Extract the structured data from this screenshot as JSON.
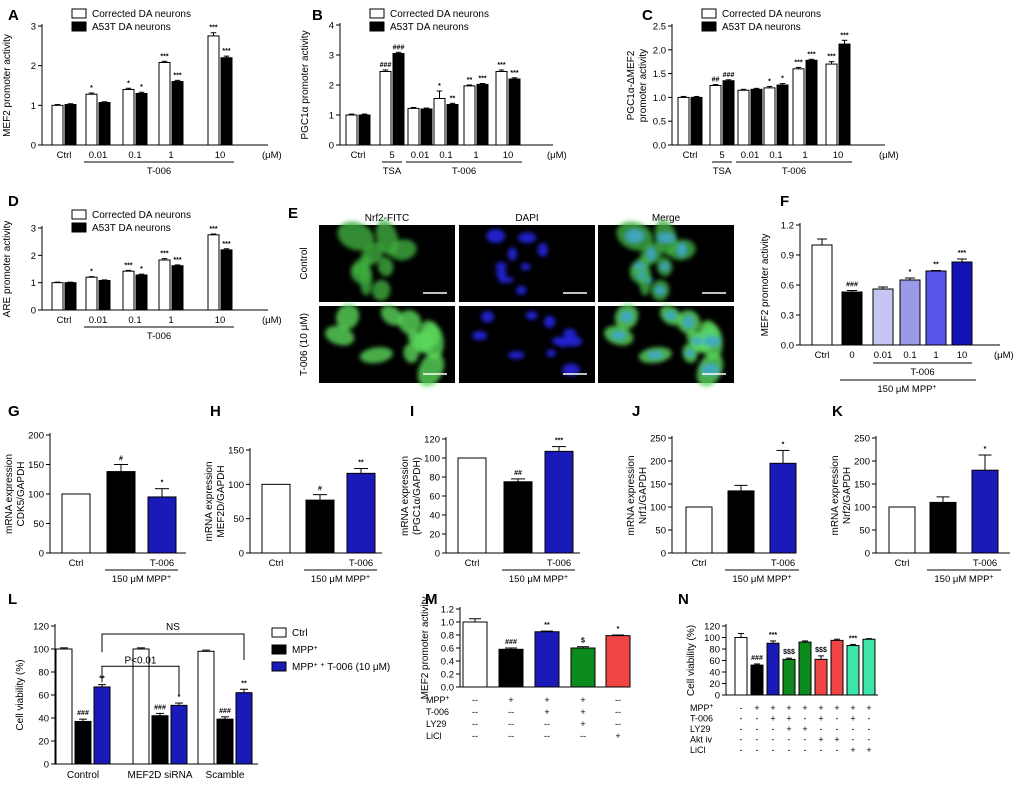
{
  "chart_data": [
    {
      "letter": "A",
      "type": "bar",
      "ylabel": "MEF2 promoter activity",
      "ylim": [
        0,
        3
      ],
      "yticks": [
        "0",
        "1",
        "2",
        "3"
      ],
      "legend": [
        "Corrected DA neurons",
        "A53T DA neurons"
      ],
      "unit": "(μM)",
      "group_label": "T-006",
      "groups": [
        {
          "label": "Ctrl",
          "values": [
            1.0,
            1.02
          ],
          "err": [
            0.02,
            0.02
          ],
          "sig": [
            "",
            ""
          ]
        },
        {
          "label": "0.01",
          "values": [
            1.28,
            1.07
          ],
          "err": [
            0.03,
            0.02
          ],
          "sig": [
            "*",
            ""
          ]
        },
        {
          "label": "0.1",
          "values": [
            1.4,
            1.3
          ],
          "err": [
            0.03,
            0.03
          ],
          "sig": [
            "*",
            "*"
          ]
        },
        {
          "label": "1",
          "values": [
            2.08,
            1.6
          ],
          "err": [
            0.03,
            0.03
          ],
          "sig": [
            "***",
            "***"
          ]
        },
        {
          "label": "10",
          "values": [
            2.75,
            2.2
          ],
          "err": [
            0.08,
            0.04
          ],
          "sig": [
            "***",
            "***"
          ]
        }
      ]
    },
    {
      "letter": "B",
      "type": "bar",
      "ylabel": "PGC1α promoter activity",
      "ylim": [
        0,
        4
      ],
      "yticks": [
        "0",
        "1",
        "2",
        "3",
        "4"
      ],
      "legend": [
        "Corrected DA neurons",
        "A53T DA neurons"
      ],
      "unit": "(μM)",
      "group_label": "T-006",
      "tsa_label": "TSA",
      "groups": [
        {
          "label": "Ctrl",
          "values": [
            1.0,
            1.0
          ],
          "err": [
            0.03,
            0.03
          ],
          "sig": [
            "",
            ""
          ]
        },
        {
          "label": "5",
          "values": [
            2.45,
            3.05
          ],
          "err": [
            0.05,
            0.04
          ],
          "sig": [
            "###",
            "###"
          ]
        },
        {
          "label": "0.01",
          "values": [
            1.22,
            1.2
          ],
          "err": [
            0.03,
            0.03
          ],
          "sig": [
            "",
            ""
          ]
        },
        {
          "label": "0.1",
          "values": [
            1.55,
            1.35
          ],
          "err": [
            0.25,
            0.04
          ],
          "sig": [
            "*",
            "**"
          ]
        },
        {
          "label": "1",
          "values": [
            1.97,
            2.02
          ],
          "err": [
            0.03,
            0.03
          ],
          "sig": [
            "**",
            "***"
          ]
        },
        {
          "label": "10",
          "values": [
            2.45,
            2.2
          ],
          "err": [
            0.05,
            0.04
          ],
          "sig": [
            "***",
            "***"
          ]
        }
      ]
    },
    {
      "letter": "C",
      "type": "bar",
      "ylabel": "PGC1α-ΔMEF2 promoter activity",
      "ylim": [
        0,
        2.5
      ],
      "yticks": [
        "0.0",
        "0.5",
        "1.0",
        "1.5",
        "2.0",
        "2.5"
      ],
      "legend": [
        "Corrected DA neurons",
        "A53T DA neurons"
      ],
      "unit": "(μM)",
      "group_label": "T-006",
      "tsa_label": "TSA",
      "groups": [
        {
          "label": "Ctrl",
          "values": [
            1.0,
            1.0
          ],
          "err": [
            0.02,
            0.02
          ],
          "sig": [
            "",
            ""
          ]
        },
        {
          "label": "5",
          "values": [
            1.25,
            1.35
          ],
          "err": [
            0.02,
            0.02
          ],
          "sig": [
            "##",
            "###"
          ]
        },
        {
          "label": "0.01",
          "values": [
            1.15,
            1.17
          ],
          "err": [
            0.02,
            0.02
          ],
          "sig": [
            "",
            ""
          ]
        },
        {
          "label": "0.1",
          "values": [
            1.2,
            1.26
          ],
          "err": [
            0.03,
            0.03
          ],
          "sig": [
            "*",
            "*"
          ]
        },
        {
          "label": "1",
          "values": [
            1.6,
            1.78
          ],
          "err": [
            0.03,
            0.02
          ],
          "sig": [
            "***",
            "***"
          ]
        },
        {
          "label": "10",
          "values": [
            1.7,
            2.12
          ],
          "err": [
            0.05,
            0.08
          ],
          "sig": [
            "***",
            "***"
          ]
        }
      ]
    },
    {
      "letter": "D",
      "type": "bar",
      "ylabel": "ARE promoter activity",
      "ylim": [
        0,
        3
      ],
      "yticks": [
        "0",
        "1",
        "2",
        "3"
      ],
      "legend": [
        "Corrected DA neurons",
        "A53T DA neurons"
      ],
      "unit": "(μM)",
      "group_label": "T-006",
      "groups": [
        {
          "label": "Ctrl",
          "values": [
            1.0,
            1.0
          ],
          "err": [
            0.02,
            0.02
          ],
          "sig": [
            "",
            ""
          ]
        },
        {
          "label": "0.01",
          "values": [
            1.2,
            1.08
          ],
          "err": [
            0.02,
            0.02
          ],
          "sig": [
            "*",
            ""
          ]
        },
        {
          "label": "0.1",
          "values": [
            1.42,
            1.28
          ],
          "err": [
            0.03,
            0.03
          ],
          "sig": [
            "***",
            "*"
          ]
        },
        {
          "label": "1",
          "values": [
            1.83,
            1.62
          ],
          "err": [
            0.05,
            0.03
          ],
          "sig": [
            "***",
            "***"
          ]
        },
        {
          "label": "10",
          "values": [
            2.75,
            2.2
          ],
          "err": [
            0.03,
            0.04
          ],
          "sig": [
            "***",
            "***"
          ]
        }
      ]
    },
    {
      "letter": "F",
      "type": "bar",
      "ylabel": "MEF2 promoter activity",
      "ylim": [
        0,
        1.2
      ],
      "yticks": [
        "0.0",
        "0.3",
        "0.6",
        "0.9",
        "1.2"
      ],
      "categories": [
        "Ctrl",
        "0",
        "0.01",
        "0.1",
        "1",
        "10"
      ],
      "values": [
        1.0,
        0.53,
        0.56,
        0.65,
        0.74,
        0.83
      ],
      "err": [
        0.06,
        0.015,
        0.02,
        0.02,
        0.005,
        0.03
      ],
      "sig": [
        "",
        "###",
        "",
        "*",
        "**",
        "***"
      ],
      "colors": [
        "#ffffff",
        "#000000",
        "#c6c6f5",
        "#9a9ae8",
        "#5555e8",
        "#1313b5"
      ],
      "unit": "(μM)",
      "group_label": "T-006",
      "mpp_label": "150 μM MPP+"
    },
    {
      "letter": "G",
      "type": "bar",
      "ylabel": "mRNA expression CDK5/GAPDH",
      "ylim": [
        0,
        200
      ],
      "yticks": [
        "0",
        "50",
        "100",
        "150",
        "200"
      ],
      "categories": [
        "Ctrl",
        "",
        "T-006"
      ],
      "values": [
        100,
        138,
        95
      ],
      "err": [
        0,
        12,
        14
      ],
      "sig": [
        "",
        "#",
        "*"
      ],
      "mpp_label": "150 μM MPP+"
    },
    {
      "letter": "H",
      "type": "bar",
      "ylabel": "mRNA expression MEF2D/GAPDH",
      "ylim": [
        0,
        150
      ],
      "yticks": [
        "0",
        "50",
        "100",
        "150"
      ],
      "categories": [
        "Ctrl",
        "",
        "T-006"
      ],
      "values": [
        100,
        77,
        116
      ],
      "err": [
        0,
        8,
        7
      ],
      "sig": [
        "",
        "#",
        "**"
      ],
      "mpp_label": "150 μM MPP+"
    },
    {
      "letter": "I",
      "type": "bar",
      "ylabel": "mRNA expression (PGC1α/GAPDH)",
      "ylim": [
        0,
        120
      ],
      "yticks": [
        "0",
        "20",
        "40",
        "60",
        "80",
        "100",
        "120"
      ],
      "categories": [
        "Ctrl",
        "",
        "T-006"
      ],
      "values": [
        100,
        75,
        107
      ],
      "err": [
        0,
        3,
        5
      ],
      "sig": [
        "",
        "##",
        "***"
      ],
      "mpp_label": "150 μM MPP+"
    },
    {
      "letter": "J",
      "type": "bar",
      "ylabel": "mRNA expression Nrf1/GAPDH",
      "ylim": [
        0,
        250
      ],
      "yticks": [
        "0",
        "50",
        "100",
        "150",
        "200",
        "250"
      ],
      "categories": [
        "Ctrl",
        "",
        "T-006"
      ],
      "values": [
        100,
        135,
        195
      ],
      "err": [
        0,
        12,
        28
      ],
      "sig": [
        "",
        "",
        "*"
      ],
      "mpp_label": "150 μM MPP+"
    },
    {
      "letter": "K",
      "type": "bar",
      "ylabel": "mRNA expression Nrf2/GAPDH",
      "ylim": [
        0,
        250
      ],
      "yticks": [
        "0",
        "50",
        "100",
        "150",
        "200",
        "250"
      ],
      "categories": [
        "Ctrl",
        "",
        "T-006"
      ],
      "values": [
        100,
        110,
        180
      ],
      "err": [
        0,
        12,
        33
      ],
      "sig": [
        "",
        "",
        "*"
      ],
      "mpp_label": "150 μM MPP+"
    },
    {
      "letter": "L",
      "type": "bar",
      "ylabel": "Cell viability (%)",
      "ylim": [
        0,
        120
      ],
      "yticks": [
        "0",
        "20",
        "40",
        "60",
        "80",
        "100",
        "120"
      ],
      "legend": [
        "Ctrl",
        "MPP+",
        "MPP+ + T-006 (10 μM)"
      ],
      "groups": [
        {
          "label": "Control",
          "values": [
            100,
            37,
            67
          ],
          "err": [
            1,
            2,
            2
          ],
          "sig": [
            "",
            "###",
            "**"
          ]
        },
        {
          "label": "MEF2D siRNA",
          "values": [
            100,
            42,
            51
          ],
          "err": [
            1,
            2,
            2
          ],
          "sig": [
            "",
            "###",
            "*"
          ]
        },
        {
          "label": "Scamble",
          "values": [
            98,
            39,
            62
          ],
          "err": [
            1,
            2,
            3
          ],
          "sig": [
            "",
            "###",
            "**"
          ]
        }
      ],
      "brackets": [
        "P<0.01",
        "NS"
      ]
    },
    {
      "letter": "M",
      "type": "bar",
      "ylabel": "MEF2 promoter activity",
      "ylim": [
        0,
        1.2
      ],
      "yticks": [
        "0.0",
        "0.2",
        "0.4",
        "0.6",
        "0.8",
        "1.0",
        "1.2"
      ],
      "values": [
        1.0,
        0.58,
        0.85,
        0.6,
        0.79
      ],
      "err": [
        0.05,
        0.02,
        0.01,
        0.02,
        0.01
      ],
      "sig": [
        "",
        "###",
        "**",
        "$",
        "*"
      ],
      "colors": [
        "#ffffff",
        "#000000",
        "#1a1ab8",
        "#0d8a1c",
        "#f04545"
      ],
      "table": {
        "rows": [
          "MPP+",
          "T-006",
          "LY29",
          "LiCl"
        ],
        "cells": [
          [
            "--",
            "+",
            "+",
            "+",
            "--"
          ],
          [
            "--",
            "--",
            "+",
            "+",
            "--"
          ],
          [
            "--",
            "--",
            "--",
            "+",
            "--"
          ],
          [
            "--",
            "--",
            "--",
            "--",
            "+"
          ]
        ]
      }
    },
    {
      "letter": "N",
      "type": "bar",
      "ylabel": "Cell viability (%)",
      "ylim": [
        0,
        120
      ],
      "yticks": [
        "0",
        "20",
        "40",
        "60",
        "80",
        "100",
        "120"
      ],
      "values": [
        100,
        52,
        90,
        62,
        92,
        62,
        95,
        86,
        97
      ],
      "err": [
        7,
        2,
        4,
        2,
        2,
        6,
        2,
        2,
        1
      ],
      "sig": [
        "",
        "###",
        "***",
        "$$$",
        "",
        "$$$",
        "",
        "***",
        ""
      ],
      "colors": [
        "#ffffff",
        "#000000",
        "#1a1ab8",
        "#0d8a1c",
        "#0d8a1c",
        "#f04545",
        "#f04545",
        "#3ce6a8",
        "#3ce6a8"
      ],
      "table": {
        "rows": [
          "MPP+",
          "T-006",
          "LY29",
          "Akt iv",
          "LiCl"
        ],
        "cells": [
          [
            "-",
            "+",
            "+",
            "+",
            "+",
            "+",
            "+",
            "+",
            "+"
          ],
          [
            "-",
            "-",
            "+",
            "+",
            "-",
            "+",
            "-",
            "+",
            "-"
          ],
          [
            "-",
            "-",
            "-",
            "+",
            "+",
            "-",
            "-",
            "-",
            "-"
          ],
          [
            "-",
            "-",
            "-",
            "-",
            "-",
            "+",
            "+",
            "-",
            "-"
          ],
          [
            "-",
            "-",
            "-",
            "-",
            "-",
            "-",
            "-",
            "+",
            "+"
          ]
        ]
      }
    }
  ],
  "panel_e": {
    "letter": "E",
    "columns": [
      "Nrf2-FITC",
      "DAPI",
      "Merge"
    ],
    "rows": [
      "Control",
      "T-006 (10 μM)"
    ]
  }
}
